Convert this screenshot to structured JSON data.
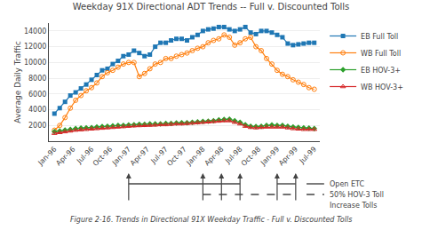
{
  "chart_data": {
    "type": "line",
    "title": "Weekday 91X Directional ADT Trends -- Full v. Discounted Tolls",
    "ylabel": "Average Daily Traffic",
    "caption": "Figure 2-16. Trends in Directional 91X Weekday Traffic - Full v. Discounted Tolls",
    "x": [
      0,
      0.2857142857142857,
      0.5714285714285714,
      0.8571428571428571,
      1.1428571428571428,
      1.4285714285714286,
      1.7142857142857142,
      2,
      2.2857142857142856,
      2.571428571428571,
      2.857142857142857,
      3.142857142857143,
      3.4285714285714284,
      3.7142857142857144,
      4,
      4.285714285714286,
      4.571428571428571,
      4.857142857142857,
      5.142857142857143,
      5.428571428571429,
      5.714285714285714,
      6,
      6.285714285714286,
      6.571428571428571,
      6.857142857142857,
      7.142857142857143,
      7.428571428571429,
      7.714285714285714,
      8,
      8.285714285714286,
      8.571428571428571,
      8.857142857142858,
      9.142857142857142,
      9.428571428571429,
      9.714285714285714,
      10,
      10.285714285714286,
      10.571428571428571,
      10.857142857142858,
      11.142857142857142,
      11.428571428571429,
      11.714285714285714,
      12,
      12.285714285714286,
      12.571428571428571,
      12.857142857142858,
      13.142857142857142,
      13.428571428571429,
      13.714285714285714,
      14
    ],
    "xlim": [
      -0.3,
      14.3
    ],
    "xticks": [
      {
        "value": 0,
        "label": "Jan-96"
      },
      {
        "value": 1,
        "label": "Apr-96"
      },
      {
        "value": 2,
        "label": "Jul-96"
      },
      {
        "value": 3,
        "label": "Oct-96"
      },
      {
        "value": 4,
        "label": "Jan-97"
      },
      {
        "value": 5,
        "label": "Apr-97"
      },
      {
        "value": 6,
        "label": "Jul-97"
      },
      {
        "value": 7,
        "label": "Oct-97"
      },
      {
        "value": 8,
        "label": "Jan-98"
      },
      {
        "value": 9,
        "label": "Apr-98"
      },
      {
        "value": 10,
        "label": "Jul-98"
      },
      {
        "value": 11,
        "label": "Oct-98"
      },
      {
        "value": 12,
        "label": "Jan-99"
      },
      {
        "value": 13,
        "label": "Apr-99"
      },
      {
        "value": 14,
        "label": "Jul-99"
      }
    ],
    "ylim": [
      0,
      15000
    ],
    "yticks": [
      2000,
      4000,
      6000,
      8000,
      10000,
      12000,
      14000
    ],
    "grid": "y",
    "legend": "right",
    "series": [
      {
        "name": "EB Full Toll",
        "marker": "square",
        "values": [
          3500,
          4200,
          5000,
          5800,
          6200,
          6700,
          7200,
          7800,
          8400,
          9000,
          9200,
          9800,
          10200,
          10800,
          11000,
          11500,
          11200,
          10800,
          11000,
          12000,
          12500,
          12500,
          12800,
          13000,
          13000,
          12800,
          13200,
          13500,
          14000,
          14200,
          14300,
          14500,
          14500,
          14200,
          14000,
          14200,
          14500,
          13800,
          13600,
          14000,
          14000,
          13800,
          13500,
          13200,
          12400,
          12200,
          12300,
          12400,
          12500,
          12500
        ]
      },
      {
        "name": "WB Full Toll",
        "marker": "circle-open",
        "values": [
          1400,
          2000,
          3000,
          4200,
          5200,
          5800,
          6400,
          6800,
          7400,
          8200,
          8700,
          9000,
          9400,
          9800,
          10000,
          10000,
          8200,
          8600,
          9200,
          9800,
          10000,
          10500,
          10500,
          10800,
          11000,
          11200,
          11500,
          11800,
          12000,
          12500,
          12800,
          13000,
          13500,
          13200,
          12200,
          12500,
          13000,
          13200,
          12000,
          11500,
          10500,
          9800,
          9000,
          8500,
          8200,
          7800,
          7500,
          7200,
          6800,
          6600
        ]
      },
      {
        "name": "EB HOV-3+",
        "marker": "diamond",
        "values": [
          1200,
          1300,
          1400,
          1500,
          1600,
          1650,
          1700,
          1720,
          1800,
          1850,
          1900,
          1950,
          2000,
          2000,
          2050,
          2100,
          2150,
          2150,
          2200,
          2200,
          2200,
          2250,
          2250,
          2300,
          2350,
          2350,
          2400,
          2450,
          2500,
          2550,
          2600,
          2700,
          2750,
          2800,
          2600,
          2400,
          2100,
          1900,
          1850,
          1900,
          2000,
          2050,
          2000,
          2000,
          1900,
          1800,
          1750,
          1700,
          1650,
          1600
        ]
      },
      {
        "name": "WB HOV-3+",
        "marker": "triangle-up-open",
        "values": [
          1000,
          1100,
          1200,
          1300,
          1400,
          1450,
          1500,
          1550,
          1600,
          1650,
          1700,
          1750,
          1800,
          1850,
          1900,
          1950,
          1980,
          2000,
          2020,
          2050,
          2100,
          2100,
          2150,
          2200,
          2200,
          2250,
          2300,
          2350,
          2400,
          2450,
          2500,
          2550,
          2600,
          2600,
          2400,
          2200,
          1900,
          1750,
          1700,
          1750,
          1800,
          1800,
          1800,
          1800,
          1700,
          1600,
          1550,
          1500,
          1500,
          1500
        ]
      }
    ],
    "arrows_x": [
      4,
      8,
      9,
      10,
      12,
      13
    ],
    "annotations": [
      {
        "text": "Open ETC",
        "line_style": "solid",
        "spans": [
          [
            4,
            10
          ],
          [
            12,
            13
          ]
        ]
      },
      {
        "text": "50% HOV-3 Toll",
        "line_style": "dash",
        "spans": [
          [
            8,
            13
          ]
        ]
      },
      {
        "text": "Increase Tolls"
      }
    ]
  }
}
